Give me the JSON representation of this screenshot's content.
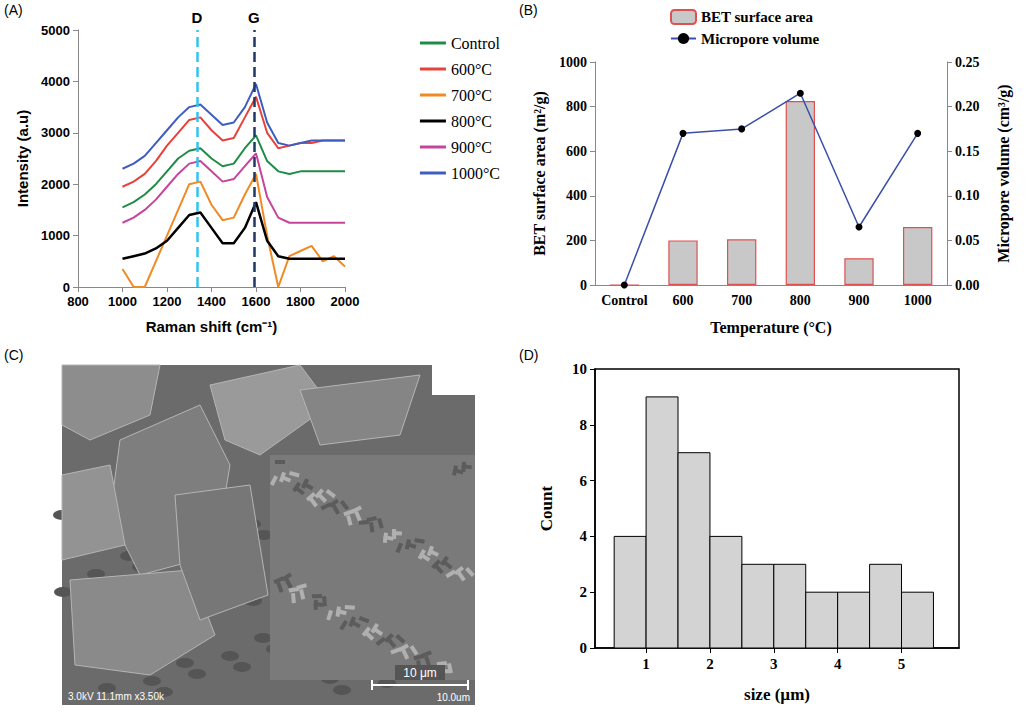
{
  "chart_data": [
    {
      "panel": "(A)",
      "type": "line",
      "x_label": "Raman shift (cm⁻¹)",
      "y_label": "Intensity (a.u)",
      "x": [
        1000,
        1050,
        1100,
        1150,
        1200,
        1250,
        1300,
        1350,
        1400,
        1450,
        1500,
        1550,
        1600,
        1650,
        1700,
        1750,
        1800,
        1850,
        1900,
        1950,
        2000
      ],
      "series": [
        {
          "name": "Control",
          "color": "#1e8c46",
          "values": [
            1550,
            1650,
            1800,
            2000,
            2250,
            2500,
            2650,
            2700,
            2500,
            2350,
            2400,
            2700,
            2950,
            2450,
            2250,
            2200,
            2250,
            2250,
            2250,
            2250,
            2250
          ]
        },
        {
          "name": "600°C",
          "color": "#e8403a",
          "values": [
            1950,
            2050,
            2200,
            2450,
            2750,
            3000,
            3250,
            3300,
            3050,
            2850,
            2900,
            3300,
            3700,
            3000,
            2700,
            2750,
            2800,
            2800,
            2850,
            2850,
            2850
          ]
        },
        {
          "name": "700°C",
          "color": "#f08a24",
          "values": [
            350,
            0,
            0,
            500,
            1000,
            1500,
            2000,
            2050,
            1600,
            1300,
            1350,
            1800,
            2200,
            1000,
            0,
            600,
            700,
            800,
            500,
            600,
            400
          ]
        },
        {
          "name": "800°C",
          "color": "#000000",
          "values": [
            550,
            600,
            650,
            750,
            900,
            1150,
            1400,
            1450,
            1150,
            850,
            850,
            1150,
            1650,
            900,
            600,
            550,
            550,
            550,
            550,
            550,
            550
          ]
        },
        {
          "name": "900°C",
          "color": "#c6449a",
          "values": [
            1250,
            1350,
            1500,
            1700,
            1950,
            2200,
            2400,
            2450,
            2250,
            2050,
            2100,
            2350,
            2600,
            1750,
            1350,
            1250,
            1250,
            1250,
            1250,
            1250,
            1250
          ]
        },
        {
          "name": "1000°C",
          "color": "#3e5dbf",
          "values": [
            2300,
            2400,
            2550,
            2800,
            3050,
            3300,
            3500,
            3550,
            3350,
            3150,
            3200,
            3500,
            3950,
            3200,
            2800,
            2750,
            2800,
            2850,
            2850,
            2850,
            2850
          ]
        }
      ],
      "vlines": [
        {
          "x": 1335,
          "label": "D",
          "color": "#33c3f0"
        },
        {
          "x": 1590,
          "label": "G",
          "color": "#1f3864"
        }
      ],
      "xlim": [
        800,
        2000
      ],
      "xticks": [
        800,
        1000,
        1200,
        1400,
        1600,
        1800,
        2000
      ],
      "ylim": [
        0,
        5000
      ],
      "yticks": [
        0,
        1000,
        2000,
        3000,
        4000,
        5000
      ],
      "grid": false,
      "legend": "right"
    },
    {
      "panel": "(B)",
      "type": "bar",
      "x_label": "Temperature (°C)",
      "y_label": "BET surface area (m²/g)",
      "y2_label": "Micropore volume (cm³/g)",
      "categories": [
        "Control",
        "600",
        "700",
        "800",
        "900",
        "1000"
      ],
      "series": [
        {
          "name": "BET surface area",
          "type": "bar",
          "color": "#c8c8c8",
          "values": [
            0,
            200,
            205,
            825,
            120,
            260
          ]
        },
        {
          "name": "Micropore volume",
          "type": "line",
          "axis": "y2",
          "color": "#3a4fa8",
          "marker": "circle",
          "values": [
            0,
            0.17,
            0.175,
            0.215,
            0.065,
            0.17
          ]
        }
      ],
      "ylim": [
        0,
        1000
      ],
      "yticks": [
        0,
        200,
        400,
        600,
        800,
        1000
      ],
      "y2lim": [
        0,
        0.25
      ],
      "y2ticks": [
        {
          "value": 0,
          "label": "0.00"
        },
        {
          "value": 0.05,
          "label": "0.05"
        },
        {
          "value": 0.1,
          "label": "0.10"
        },
        {
          "value": 0.15,
          "label": "0.15"
        },
        {
          "value": 0.2,
          "label": "0.20"
        },
        {
          "value": 0.25,
          "label": "0.25"
        }
      ],
      "grid": false,
      "legend": "top"
    },
    {
      "panel": "(C)",
      "type": "image",
      "info": "3.0kV 11.1mm x3.50k",
      "scale_bar": "10 μm",
      "corner_label": "10.0um"
    },
    {
      "panel": "(D)",
      "type": "histogram",
      "x_label": "size (µm)",
      "y_label": "Count",
      "bins": [
        0.5,
        1.0,
        1.5,
        2.0,
        2.5,
        3.0,
        3.5,
        4.0,
        4.5,
        5.0,
        5.5
      ],
      "counts": [
        4,
        9,
        7,
        4,
        3,
        3,
        2,
        2,
        3,
        2
      ],
      "color": "#d3d3d3",
      "xlim": [
        0.2,
        5.9
      ],
      "xticks": [
        1,
        2,
        3,
        4,
        5
      ],
      "ylim": [
        0,
        10
      ],
      "yticks": [
        0,
        2,
        4,
        6,
        8,
        10
      ],
      "grid": false
    }
  ]
}
